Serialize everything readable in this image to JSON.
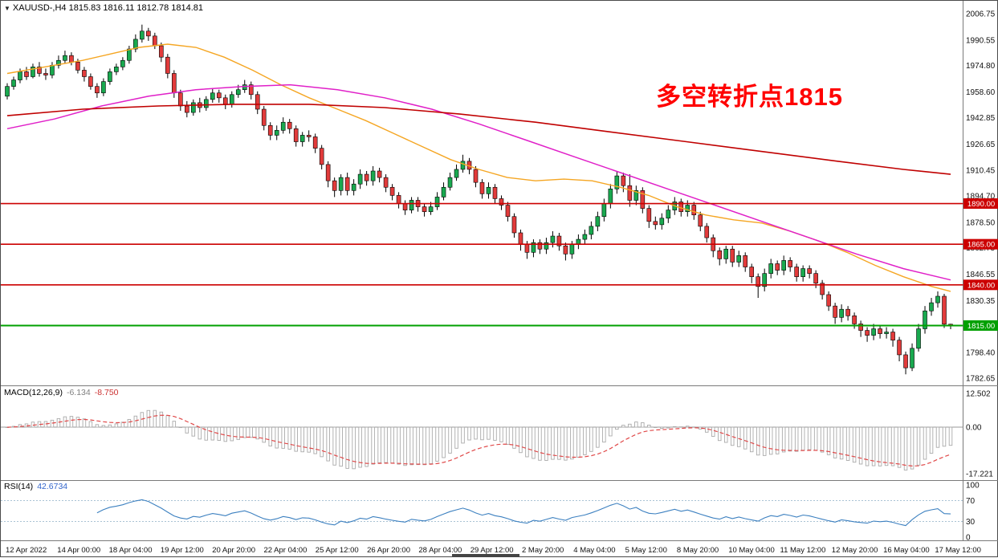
{
  "header": {
    "collapse_icon": "▼",
    "symbol_timeframe": "XAUUSD-,H4",
    "ohlc": "1815.83 1816.11 1812.78 1814.81"
  },
  "chart_data": {
    "type": "candlestick",
    "title": "XAUUSD H4 chart with MACD and RSI",
    "symbol": "XAUUSD-",
    "timeframe": "H4",
    "annotation": {
      "text": "多空转折点1815",
      "color": "#FF0000"
    },
    "colors": {
      "up": "#19A94F",
      "down": "#E23B3B",
      "wick": "#000000"
    },
    "y_axis_labels": [
      2006.75,
      1990.55,
      1974.8,
      1958.6,
      1942.85,
      1926.65,
      1910.45,
      1894.7,
      1878.5,
      1862.75,
      1846.55,
      1830.35,
      1814.6,
      1798.4,
      1782.65
    ],
    "x_labels": [
      "12 Apr 2022",
      "14 Apr 00:00",
      "18 Apr 04:00",
      "19 Apr 12:00",
      "20 Apr 20:00",
      "22 Apr 04:00",
      "25 Apr 12:00",
      "26 Apr 20:00",
      "28 Apr 04:00",
      "29 Apr 12:00",
      "2 May 20:00",
      "4 May 04:00",
      "5 May 12:00",
      "8 May 20:00",
      "10 May 04:00",
      "11 May 12:00",
      "12 May 20:00",
      "16 May 04:00",
      "17 May 12:00"
    ],
    "hlines": [
      {
        "price": 1890.0,
        "label": "1890.00",
        "color": "#CC0000",
        "width": 1.6
      },
      {
        "price": 1865.0,
        "label": "1865.00",
        "color": "#CC0000",
        "width": 1.6
      },
      {
        "price": 1840.0,
        "label": "1840.00",
        "color": "#CC0000",
        "width": 1.6
      },
      {
        "price": 1815.0,
        "label": "1815.00",
        "color": "#00A000",
        "width": 2
      }
    ],
    "moving_averages": [
      {
        "name": "ma-fast-orange",
        "color": "#F5A623",
        "width": 1.4,
        "points": [
          [
            0,
            1970
          ],
          [
            0.04,
            1974
          ],
          [
            0.08,
            1978
          ],
          [
            0.11,
            1982
          ],
          [
            0.14,
            1986
          ],
          [
            0.17,
            1988
          ],
          [
            0.2,
            1986
          ],
          [
            0.23,
            1980
          ],
          [
            0.26,
            1972
          ],
          [
            0.29,
            1963
          ],
          [
            0.32,
            1955
          ],
          [
            0.35,
            1948
          ],
          [
            0.38,
            1941
          ],
          [
            0.41,
            1933
          ],
          [
            0.44,
            1925
          ],
          [
            0.47,
            1917
          ],
          [
            0.5,
            1911
          ],
          [
            0.53,
            1906
          ],
          [
            0.56,
            1904
          ],
          [
            0.59,
            1905
          ],
          [
            0.62,
            1904
          ],
          [
            0.65,
            1900
          ],
          [
            0.68,
            1895
          ],
          [
            0.71,
            1888
          ],
          [
            0.74,
            1883
          ],
          [
            0.77,
            1880
          ],
          [
            0.8,
            1878
          ],
          [
            0.83,
            1873
          ],
          [
            0.86,
            1867
          ],
          [
            0.89,
            1860
          ],
          [
            0.92,
            1852
          ],
          [
            0.95,
            1845
          ],
          [
            0.98,
            1839
          ],
          [
            1,
            1836
          ]
        ]
      },
      {
        "name": "ma-mid-magenta",
        "color": "#E020C8",
        "width": 1.5,
        "points": [
          [
            0,
            1936
          ],
          [
            0.05,
            1942
          ],
          [
            0.1,
            1950
          ],
          [
            0.15,
            1956
          ],
          [
            0.2,
            1960
          ],
          [
            0.25,
            1962
          ],
          [
            0.3,
            1963
          ],
          [
            0.35,
            1960
          ],
          [
            0.4,
            1955
          ],
          [
            0.45,
            1948
          ],
          [
            0.5,
            1939
          ],
          [
            0.55,
            1929
          ],
          [
            0.6,
            1919
          ],
          [
            0.65,
            1909
          ],
          [
            0.7,
            1899
          ],
          [
            0.75,
            1889
          ],
          [
            0.8,
            1879
          ],
          [
            0.85,
            1869
          ],
          [
            0.9,
            1859
          ],
          [
            0.95,
            1850
          ],
          [
            1,
            1843
          ]
        ]
      },
      {
        "name": "ma-slow-red",
        "color": "#C00000",
        "width": 1.6,
        "points": [
          [
            0,
            1944
          ],
          [
            0.08,
            1948
          ],
          [
            0.16,
            1950
          ],
          [
            0.24,
            1951
          ],
          [
            0.32,
            1951
          ],
          [
            0.4,
            1949
          ],
          [
            0.48,
            1945
          ],
          [
            0.56,
            1940
          ],
          [
            0.64,
            1934
          ],
          [
            0.72,
            1928
          ],
          [
            0.8,
            1922
          ],
          [
            0.88,
            1916
          ],
          [
            0.95,
            1911
          ],
          [
            1,
            1908
          ]
        ]
      }
    ],
    "macd": {
      "label": "MACD(12,26,9)",
      "value_main": "-6.134",
      "value_signal": "-8.750",
      "fast": 12,
      "slow": 26,
      "signal": 9,
      "axis_max": 12.502,
      "axis_min": -17.221,
      "axis_labels": [
        {
          "text": "12.502",
          "value": 12.502
        },
        {
          "text": "0.00",
          "value": 0
        },
        {
          "text": "-17.221",
          "value": -17.221
        }
      ]
    },
    "rsi": {
      "label": "RSI(14)",
      "value": "42.6734",
      "period": 14,
      "levels": [
        70,
        30
      ],
      "axis_labels": [
        100,
        70,
        30,
        0
      ]
    },
    "candles": [
      [
        1956,
        1964,
        1954,
        1962
      ],
      [
        1962,
        1968,
        1960,
        1966
      ],
      [
        1966,
        1973,
        1964,
        1971
      ],
      [
        1971,
        1974,
        1966,
        1968
      ],
      [
        1968,
        1976,
        1967,
        1974
      ],
      [
        1974,
        1977,
        1968,
        1970
      ],
      [
        1970,
        1973,
        1966,
        1969
      ],
      [
        1969,
        1977,
        1967,
        1975
      ],
      [
        1975,
        1981,
        1973,
        1978
      ],
      [
        1978,
        1984,
        1976,
        1981
      ],
      [
        1981,
        1983,
        1975,
        1977
      ],
      [
        1977,
        1979,
        1970,
        1972
      ],
      [
        1972,
        1974,
        1965,
        1968
      ],
      [
        1968,
        1970,
        1960,
        1962
      ],
      [
        1962,
        1964,
        1955,
        1958
      ],
      [
        1958,
        1967,
        1956,
        1965
      ],
      [
        1965,
        1973,
        1963,
        1971
      ],
      [
        1971,
        1976,
        1969,
        1974
      ],
      [
        1974,
        1980,
        1972,
        1978
      ],
      [
        1978,
        1987,
        1976,
        1985
      ],
      [
        1985,
        1994,
        1983,
        1991
      ],
      [
        1991,
        2000,
        1989,
        1996
      ],
      [
        1996,
        1998,
        1990,
        1993
      ],
      [
        1993,
        1995,
        1985,
        1987
      ],
      [
        1987,
        1989,
        1977,
        1980
      ],
      [
        1980,
        1982,
        1967,
        1970
      ],
      [
        1970,
        1972,
        1955,
        1958
      ],
      [
        1958,
        1960,
        1947,
        1950
      ],
      [
        1950,
        1953,
        1943,
        1946
      ],
      [
        1946,
        1954,
        1944,
        1952
      ],
      [
        1952,
        1955,
        1946,
        1949
      ],
      [
        1949,
        1956,
        1947,
        1954
      ],
      [
        1954,
        1961,
        1952,
        1958
      ],
      [
        1958,
        1960,
        1952,
        1955
      ],
      [
        1955,
        1957,
        1948,
        1951
      ],
      [
        1951,
        1959,
        1949,
        1957
      ],
      [
        1957,
        1963,
        1955,
        1960
      ],
      [
        1960,
        1966,
        1958,
        1963
      ],
      [
        1963,
        1965,
        1954,
        1957
      ],
      [
        1957,
        1959,
        1945,
        1948
      ],
      [
        1948,
        1950,
        1935,
        1938
      ],
      [
        1938,
        1940,
        1929,
        1932
      ],
      [
        1932,
        1938,
        1929,
        1935
      ],
      [
        1935,
        1943,
        1933,
        1940
      ],
      [
        1940,
        1942,
        1933,
        1936
      ],
      [
        1936,
        1938,
        1925,
        1928
      ],
      [
        1928,
        1934,
        1925,
        1932
      ],
      [
        1932,
        1935,
        1928,
        1931
      ],
      [
        1931,
        1933,
        1921,
        1924
      ],
      [
        1924,
        1926,
        1911,
        1914
      ],
      [
        1914,
        1916,
        1900,
        1904
      ],
      [
        1904,
        1906,
        1894,
        1898
      ],
      [
        1898,
        1908,
        1895,
        1906
      ],
      [
        1906,
        1909,
        1895,
        1898
      ],
      [
        1898,
        1905,
        1895,
        1902
      ],
      [
        1902,
        1911,
        1899,
        1908
      ],
      [
        1908,
        1910,
        1901,
        1904
      ],
      [
        1904,
        1913,
        1901,
        1910
      ],
      [
        1910,
        1912,
        1903,
        1906
      ],
      [
        1906,
        1908,
        1897,
        1900
      ],
      [
        1900,
        1902,
        1892,
        1895
      ],
      [
        1895,
        1897,
        1887,
        1890
      ],
      [
        1890,
        1892,
        1883,
        1886
      ],
      [
        1886,
        1894,
        1884,
        1892
      ],
      [
        1892,
        1894,
        1885,
        1888
      ],
      [
        1888,
        1890,
        1882,
        1885
      ],
      [
        1885,
        1891,
        1883,
        1888
      ],
      [
        1888,
        1897,
        1886,
        1894
      ],
      [
        1894,
        1903,
        1892,
        1900
      ],
      [
        1900,
        1909,
        1898,
        1906
      ],
      [
        1906,
        1914,
        1904,
        1911
      ],
      [
        1911,
        1920,
        1909,
        1916
      ],
      [
        1916,
        1918,
        1908,
        1911
      ],
      [
        1911,
        1913,
        1900,
        1903
      ],
      [
        1903,
        1905,
        1893,
        1896
      ],
      [
        1896,
        1903,
        1893,
        1900
      ],
      [
        1900,
        1902,
        1890,
        1893
      ],
      [
        1893,
        1895,
        1886,
        1889
      ],
      [
        1889,
        1891,
        1879,
        1882
      ],
      [
        1882,
        1884,
        1869,
        1872
      ],
      [
        1872,
        1874,
        1861,
        1865
      ],
      [
        1865,
        1867,
        1856,
        1860
      ],
      [
        1860,
        1868,
        1857,
        1866
      ],
      [
        1866,
        1868,
        1859,
        1862
      ],
      [
        1862,
        1869,
        1859,
        1866
      ],
      [
        1866,
        1873,
        1863,
        1870
      ],
      [
        1870,
        1872,
        1861,
        1864
      ],
      [
        1864,
        1866,
        1855,
        1859
      ],
      [
        1859,
        1867,
        1856,
        1865
      ],
      [
        1865,
        1871,
        1862,
        1868
      ],
      [
        1868,
        1874,
        1865,
        1871
      ],
      [
        1871,
        1879,
        1868,
        1876
      ],
      [
        1876,
        1885,
        1873,
        1882
      ],
      [
        1882,
        1893,
        1879,
        1890
      ],
      [
        1890,
        1902,
        1887,
        1899
      ],
      [
        1899,
        1910,
        1896,
        1907
      ],
      [
        1907,
        1909,
        1897,
        1901
      ],
      [
        1901,
        1908,
        1888,
        1892
      ],
      [
        1892,
        1901,
        1889,
        1898
      ],
      [
        1898,
        1900,
        1884,
        1887
      ],
      [
        1887,
        1889,
        1875,
        1879
      ],
      [
        1879,
        1882,
        1874,
        1877
      ],
      [
        1877,
        1884,
        1874,
        1881
      ],
      [
        1881,
        1889,
        1878,
        1886
      ],
      [
        1886,
        1894,
        1883,
        1891
      ],
      [
        1891,
        1893,
        1882,
        1885
      ],
      [
        1885,
        1892,
        1882,
        1889
      ],
      [
        1889,
        1891,
        1880,
        1883
      ],
      [
        1883,
        1885,
        1873,
        1876
      ],
      [
        1876,
        1878,
        1866,
        1869
      ],
      [
        1869,
        1871,
        1857,
        1861
      ],
      [
        1861,
        1863,
        1852,
        1856
      ],
      [
        1856,
        1864,
        1853,
        1862
      ],
      [
        1862,
        1864,
        1851,
        1854
      ],
      [
        1854,
        1861,
        1851,
        1858
      ],
      [
        1858,
        1860,
        1848,
        1851
      ],
      [
        1851,
        1853,
        1841,
        1845
      ],
      [
        1845,
        1847,
        1832,
        1839
      ],
      [
        1839,
        1850,
        1836,
        1847
      ],
      [
        1847,
        1856,
        1844,
        1853
      ],
      [
        1853,
        1855,
        1846,
        1849
      ],
      [
        1849,
        1858,
        1846,
        1855
      ],
      [
        1855,
        1857,
        1848,
        1851
      ],
      [
        1851,
        1853,
        1842,
        1845
      ],
      [
        1845,
        1852,
        1842,
        1850
      ],
      [
        1850,
        1852,
        1844,
        1847
      ],
      [
        1847,
        1849,
        1838,
        1841
      ],
      [
        1841,
        1843,
        1831,
        1834
      ],
      [
        1834,
        1836,
        1824,
        1827
      ],
      [
        1827,
        1829,
        1816,
        1820
      ],
      [
        1820,
        1828,
        1817,
        1825
      ],
      [
        1825,
        1827,
        1818,
        1821
      ],
      [
        1821,
        1823,
        1813,
        1816
      ],
      [
        1816,
        1818,
        1808,
        1812
      ],
      [
        1812,
        1814,
        1805,
        1809
      ],
      [
        1809,
        1816,
        1806,
        1813
      ],
      [
        1813,
        1815,
        1807,
        1810
      ],
      [
        1810,
        1814,
        1807,
        1811
      ],
      [
        1811,
        1813,
        1802,
        1806
      ],
      [
        1806,
        1808,
        1793,
        1797
      ],
      [
        1797,
        1799,
        1785,
        1789
      ],
      [
        1789,
        1804,
        1787,
        1801
      ],
      [
        1801,
        1816,
        1799,
        1813
      ],
      [
        1813,
        1827,
        1810,
        1824
      ],
      [
        1824,
        1832,
        1821,
        1829
      ],
      [
        1829,
        1836,
        1826,
        1833
      ],
      [
        1833,
        1834.5,
        1813.5,
        1815.83
      ],
      [
        1815.83,
        1816.11,
        1812.78,
        1814.81
      ]
    ]
  }
}
